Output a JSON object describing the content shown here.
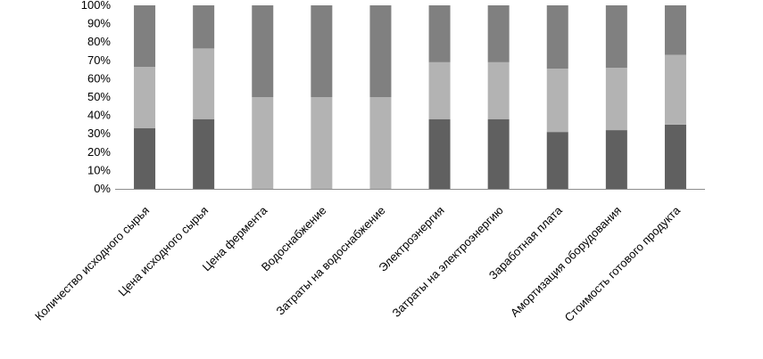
{
  "chart_data": {
    "type": "bar",
    "stacked": "percent",
    "title": "",
    "xlabel": "",
    "ylabel": "",
    "ylim": [
      0,
      100
    ],
    "grid": false,
    "legend": "none",
    "y_ticks": [
      "0%",
      "10%",
      "20%",
      "30%",
      "40%",
      "50%",
      "60%",
      "70%",
      "80%",
      "90%",
      "100%"
    ],
    "categories": [
      "Количество исходного сырья",
      "Цена  исходного сырья",
      "Цена фермента",
      "Водоснабжение",
      "Затраты на водоснабжение",
      "Электроэнергия",
      "Затраты на электроэнергию",
      "Заработная плата",
      "Амортизация оборудования",
      "Стоимость готового продукта"
    ],
    "series": [
      {
        "color": "#606060",
        "values": [
          33,
          38,
          0,
          0,
          0,
          38,
          38,
          31,
          32,
          35
        ]
      },
      {
        "color": "#b3b3b3",
        "values": [
          33.5,
          38.5,
          50,
          50,
          50,
          31,
          31,
          34.5,
          34,
          38
        ]
      },
      {
        "color": "#808080",
        "values": [
          33.5,
          23.5,
          50,
          50,
          50,
          31,
          31,
          34.5,
          34,
          27
        ]
      }
    ]
  }
}
